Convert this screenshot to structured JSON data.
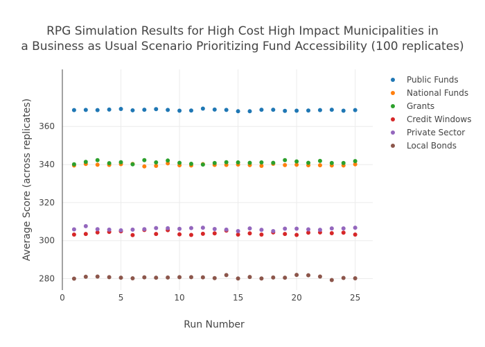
{
  "chart_data": {
    "type": "scatter",
    "title": "RPG Simulation Results for High Cost High Impact Municipalities in",
    "title_line2": "a Business as Usual Scenario Prioritizing Fund Accessibility (100 replicates)",
    "xlabel": "Run Number",
    "ylabel": "Average Score (across replicates)",
    "xlim": [
      0,
      26.5
    ],
    "ylim": [
      274,
      390
    ],
    "xticks": [
      0,
      5,
      10,
      15,
      20,
      25
    ],
    "yticks": [
      280,
      300,
      320,
      340,
      360
    ],
    "grid": true,
    "legend_position": "top-right",
    "x": [
      1,
      2,
      3,
      4,
      5,
      6,
      7,
      8,
      9,
      10,
      11,
      12,
      13,
      14,
      15,
      16,
      17,
      18,
      19,
      20,
      21,
      22,
      23,
      24,
      25
    ],
    "series": [
      {
        "name": "Public Funds",
        "color": "#1f77b4",
        "values": [
          368.6,
          368.7,
          368.6,
          368.9,
          369.2,
          368.5,
          368.8,
          369.1,
          368.7,
          368.3,
          368.4,
          369.4,
          368.9,
          368.7,
          368.0,
          368.0,
          368.8,
          368.8,
          368.2,
          368.3,
          368.4,
          368.6,
          368.8,
          368.3,
          368.6
        ]
      },
      {
        "name": "National Funds",
        "color": "#ff7f0e",
        "values": [
          339.5,
          340.3,
          339.9,
          339.8,
          340.2,
          340.3,
          339.0,
          339.3,
          340.6,
          339.6,
          339.5,
          340.2,
          339.8,
          339.8,
          340.0,
          339.7,
          339.3,
          340.4,
          339.7,
          339.9,
          339.6,
          339.6,
          339.5,
          339.5,
          340.1
        ]
      },
      {
        "name": "Grants",
        "color": "#2ca02c",
        "values": [
          340.1,
          341.4,
          342.3,
          340.7,
          341.2,
          340.1,
          342.3,
          341.1,
          342.1,
          340.9,
          340.4,
          340.0,
          340.8,
          341.2,
          341.1,
          340.9,
          341.1,
          340.9,
          342.3,
          341.6,
          340.9,
          341.9,
          340.8,
          340.8,
          341.8
        ]
      },
      {
        "name": "Credit Windows",
        "color": "#d62728",
        "values": [
          303.2,
          303.5,
          304.3,
          304.6,
          304.9,
          302.9,
          305.6,
          303.5,
          305.5,
          303.3,
          303.0,
          303.6,
          303.8,
          305.3,
          303.2,
          303.8,
          303.2,
          304.3,
          303.5,
          303.0,
          304.2,
          304.3,
          303.9,
          304.2,
          303.2
        ]
      },
      {
        "name": "Private Sector",
        "color": "#9467bd",
        "values": [
          305.9,
          307.6,
          306.0,
          305.8,
          305.4,
          305.8,
          306.0,
          306.6,
          306.5,
          306.2,
          306.6,
          306.8,
          306.1,
          305.8,
          305.0,
          306.4,
          305.7,
          305.0,
          306.3,
          306.3,
          305.9,
          305.7,
          306.4,
          306.4,
          306.8
        ]
      },
      {
        "name": "Local Bonds",
        "color": "#8c564b",
        "values": [
          280.0,
          281.0,
          281.1,
          280.8,
          280.5,
          280.2,
          280.7,
          280.5,
          280.6,
          280.8,
          280.8,
          280.7,
          280.3,
          281.9,
          280.1,
          280.9,
          280.1,
          280.6,
          280.5,
          282.0,
          281.8,
          281.1,
          279.3,
          280.4,
          280.2
        ]
      }
    ]
  }
}
